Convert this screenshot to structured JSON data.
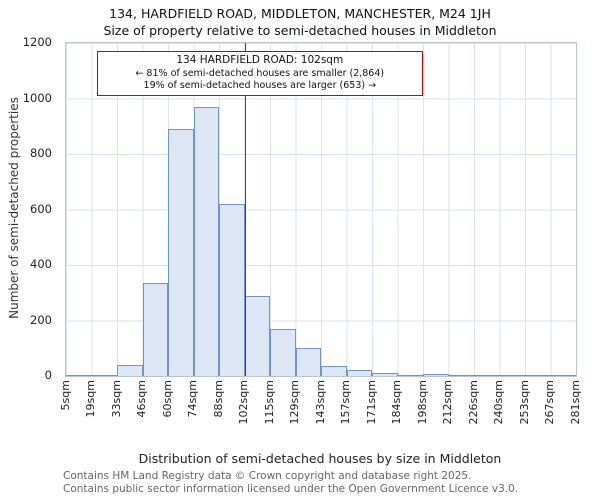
{
  "header": {
    "title": "134, HARDFIELD ROAD, MIDDLETON, MANCHESTER, M24 1JH",
    "subtitle": "Size of property relative to semi-detached houses in Middleton"
  },
  "footer": {
    "line1": "Contains HM Land Registry data © Crown copyright and database right 2025.",
    "line2": "Contains public sector information licensed under the Open Government Licence v3.0."
  },
  "chart_data": {
    "type": "bar",
    "title": "134, HARDFIELD ROAD, MIDDLETON, MANCHESTER, M24 1JH",
    "subtitle": "Size of property relative to semi-detached houses in Middleton",
    "xlabel": "Distribution of semi-detached houses by size in Middleton",
    "ylabel": "Number of semi-detached properties",
    "ylim": [
      0,
      1200
    ],
    "yticks": [
      0,
      200,
      400,
      600,
      800,
      1000,
      1200
    ],
    "grid": true,
    "x_tick_labels": [
      "5sqm",
      "19sqm",
      "33sqm",
      "46sqm",
      "60sqm",
      "74sqm",
      "88sqm",
      "102sqm",
      "115sqm",
      "129sqm",
      "143sqm",
      "157sqm",
      "171sqm",
      "184sqm",
      "198sqm",
      "212sqm",
      "226sqm",
      "240sqm",
      "253sqm",
      "267sqm",
      "281sqm"
    ],
    "bin_starts_sqm": [
      5,
      19,
      33,
      46,
      60,
      74,
      88,
      102,
      115,
      129,
      143,
      157,
      171,
      184,
      198,
      212,
      226,
      240,
      253,
      267
    ],
    "values": [
      3,
      5,
      40,
      335,
      890,
      970,
      620,
      290,
      170,
      100,
      35,
      20,
      10,
      5,
      8,
      3,
      2,
      2,
      2,
      0
    ],
    "bar_fill": "#dce6f5",
    "bar_border": "#7094c8",
    "marker": {
      "label": "134 HARDFIELD ROAD: 102sqm",
      "value_sqm": 102,
      "tick_index": 7,
      "smaller_text": "← 81% of semi-detached houses are smaller (2,864)",
      "larger_text": "19% of semi-detached houses are larger (653) →",
      "color": "#bb1122",
      "box_border_color": "#cc0000"
    }
  }
}
